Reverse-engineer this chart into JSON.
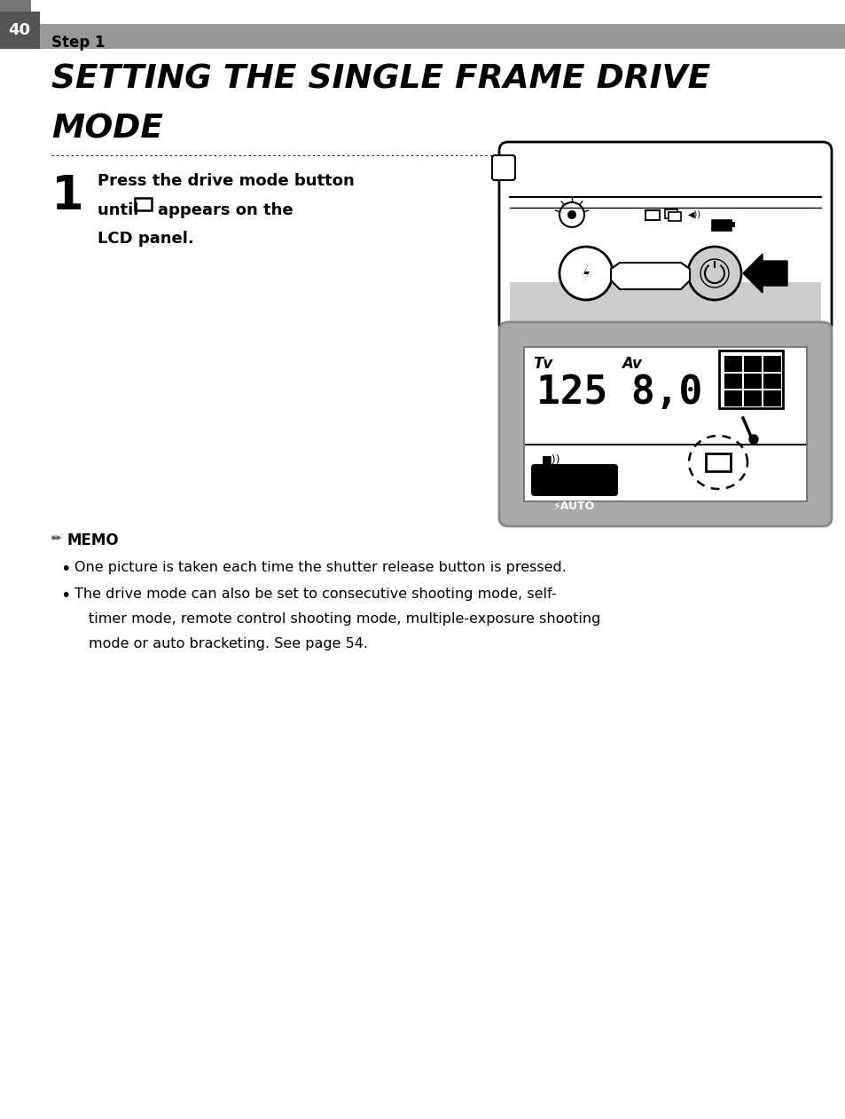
{
  "page_number": "40",
  "step_label": "Step 1",
  "title_line1": "SETTING THE SINGLE FRAME DRIVE",
  "title_line2": "MODE",
  "step1_text_line1": "Press the drive mode button",
  "step1_text_line2a": "until ",
  "step1_text_line2b": " appears on the",
  "step1_text_line3": "LCD panel.",
  "memo_title": "MEMO",
  "memo_bullet1": "One picture is taken each time the shutter release button is pressed.",
  "memo_bullet2a": "The drive mode can also be set to consecutive shooting mode, self-",
  "memo_bullet2b": "timer mode, remote control shooting mode, multiple-exposure shooting",
  "memo_bullet2c": "mode or auto bracketing. See page 54.",
  "bg_color": "#ffffff",
  "header_bg": "#999999",
  "page_num_bg": "#555555",
  "gray_dark": "#888888",
  "gray_light": "#cccccc",
  "gray_mid": "#aaaaaa"
}
